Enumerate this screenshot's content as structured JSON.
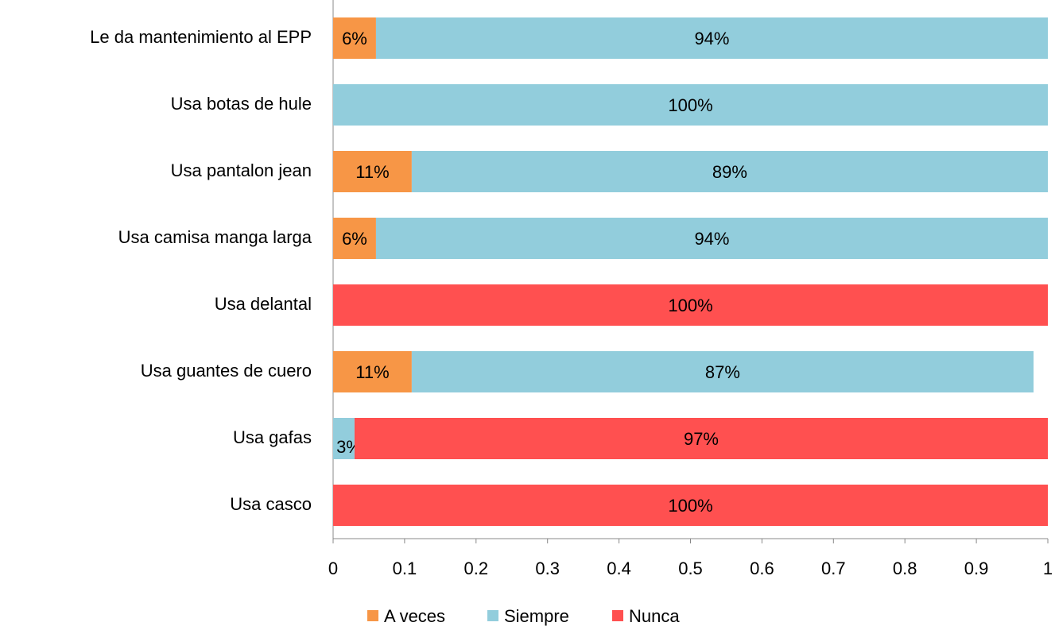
{
  "chart_data": {
    "type": "stacked-barh",
    "categories": [
      "Le da mantenimiento al EPP",
      "Usa botas de hule",
      "Usa pantalon jean",
      "Usa camisa manga larga",
      "Usa delantal",
      "Usa guantes de cuero",
      "Usa gafas",
      "Usa casco"
    ],
    "series": [
      {
        "name": "A veces",
        "color": "#f79646",
        "values": [
          0.06,
          null,
          0.11,
          0.06,
          null,
          0.11,
          null,
          null
        ],
        "value_labels": [
          "6%",
          null,
          "11%",
          "6%",
          null,
          "11%",
          null,
          null
        ]
      },
      {
        "name": "Siempre",
        "color": "#92cddc",
        "values": [
          0.94,
          1.0,
          0.89,
          0.94,
          null,
          0.87,
          0.03,
          null
        ],
        "value_labels": [
          "94%",
          "100%",
          "89%",
          "94%",
          null,
          "87%",
          "3%",
          null
        ]
      },
      {
        "name": "Nunca",
        "color": "#ff5050",
        "values": [
          null,
          null,
          null,
          null,
          1.0,
          null,
          0.97,
          1.0
        ],
        "value_labels": [
          null,
          null,
          null,
          null,
          "100%",
          null,
          "97%",
          "100%"
        ]
      }
    ],
    "xlim": [
      0,
      1
    ],
    "xticks": [
      0,
      0.1,
      0.2,
      0.3,
      0.4,
      0.5,
      0.6,
      0.7,
      0.8,
      0.9,
      1
    ],
    "legend": "bottom"
  }
}
